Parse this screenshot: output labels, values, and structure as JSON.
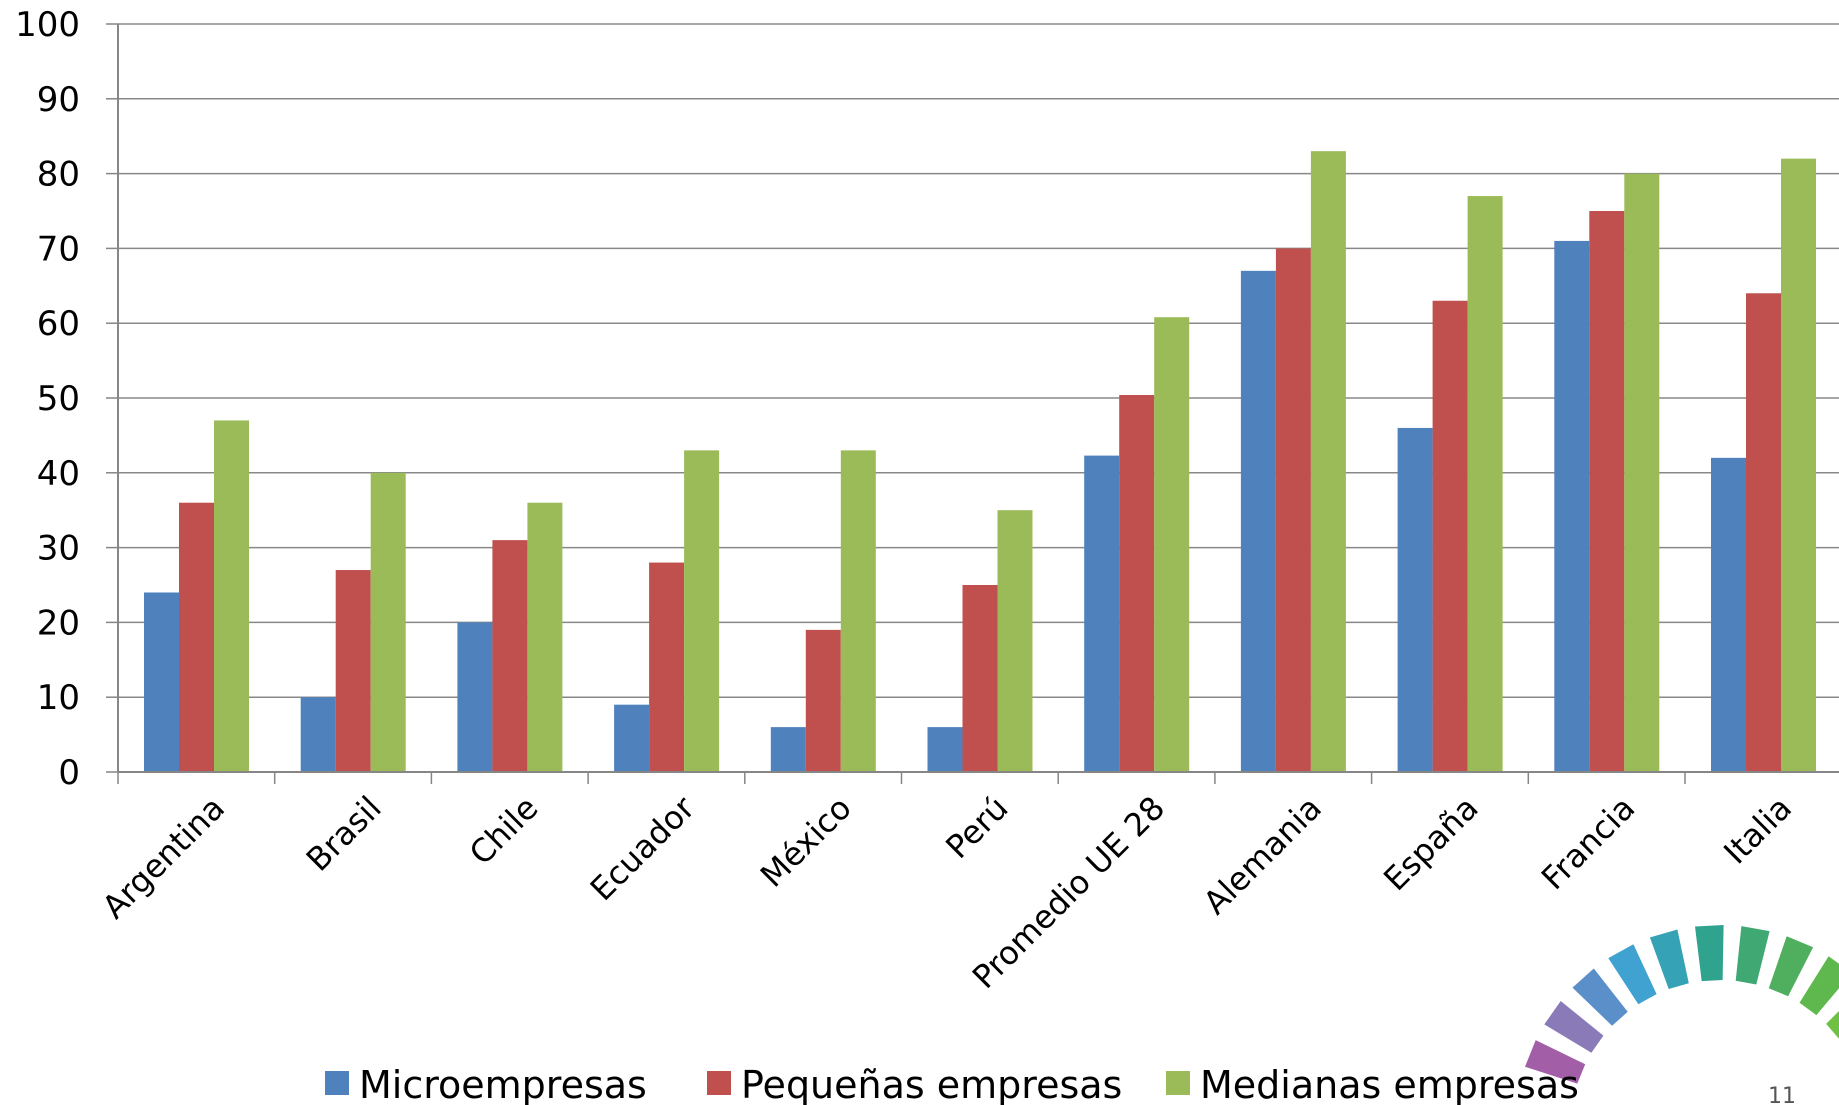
{
  "colors": {
    "micro": "#4F81BD",
    "pequenas": "#C0504D",
    "medianas": "#9BBB59",
    "grid": "#888888",
    "axis": "#868686"
  },
  "page_number": "11",
  "decoration": {
    "icon": "circular-color-segments-logo",
    "segment_colors": [
      "#A25FA8",
      "#8A7BB8",
      "#5B8FC9",
      "#3FA2D0",
      "#35A3B5",
      "#2FA38E",
      "#3FA873",
      "#4FAF5E",
      "#5FB84E",
      "#6FC145",
      "#7FC83D",
      "#9DCF3A"
    ]
  },
  "chart_data": {
    "type": "bar",
    "title": "",
    "xlabel": "",
    "ylabel": "",
    "ylim": [
      0,
      100
    ],
    "yticks": [
      "0",
      "10",
      "20",
      "30",
      "40",
      "50",
      "60",
      "70",
      "80",
      "90",
      "100"
    ],
    "grid": true,
    "legend_position": "bottom",
    "categories": [
      "Argentina",
      "Brasil",
      "Chile",
      "Ecuador",
      "México",
      "Perú",
      "Promedio UE 28",
      "Alemania",
      "España",
      "Francia",
      "Italia"
    ],
    "series": [
      {
        "name": "Microempresas",
        "color": "#4F81BD",
        "values": [
          24,
          10,
          20,
          9,
          6,
          6,
          42.3,
          67,
          46,
          71,
          42
        ]
      },
      {
        "name": "Pequeñas empresas",
        "color": "#C0504D",
        "values": [
          36,
          27,
          31,
          28,
          19,
          25,
          50.4,
          70,
          63,
          75,
          64
        ]
      },
      {
        "name": "Medianas empresas",
        "color": "#9BBB59",
        "values": [
          47,
          40,
          36,
          43,
          43,
          35,
          60.8,
          83,
          77,
          80,
          82
        ]
      }
    ]
  }
}
